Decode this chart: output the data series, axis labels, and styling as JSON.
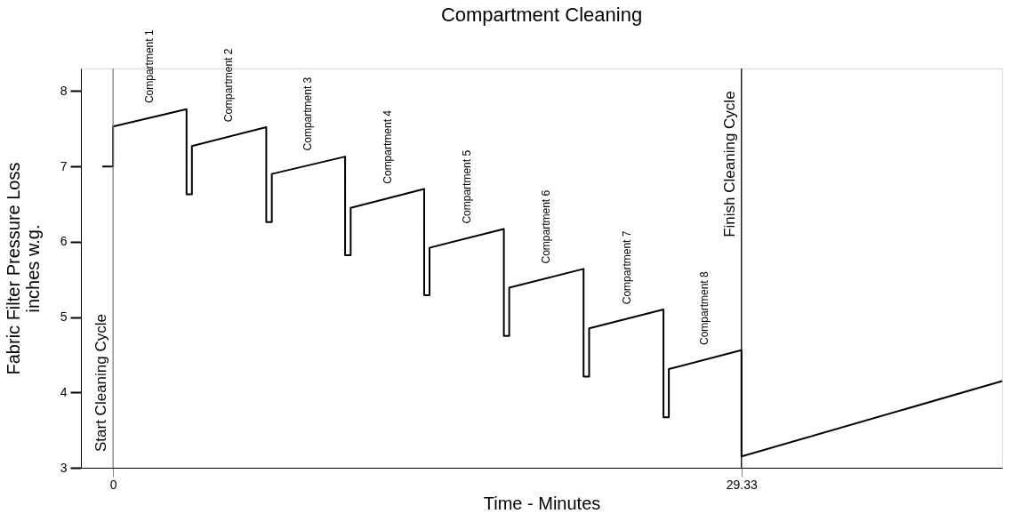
{
  "chart_data": {
    "type": "line",
    "title": "Compartment Cleaning",
    "xlabel": "Time - Minutes",
    "ylabel": "Fabric Filter Pressure Loss\ninches w.g.",
    "series": [
      {
        "color": "#000000",
        "x": [
          -0.5,
          0,
          0,
          3.43,
          3.43,
          3.68,
          3.68,
          7.15,
          7.15,
          7.41,
          7.41,
          10.83,
          10.83,
          11.09,
          11.09,
          14.52,
          14.52,
          14.77,
          14.77,
          18.24,
          18.24,
          18.49,
          18.49,
          21.96,
          21.96,
          22.22,
          22.22,
          25.69,
          25.69,
          25.94,
          25.94,
          29.33,
          29.33,
          41.5
        ],
        "values": [
          7,
          7,
          7.53,
          7.76,
          6.63,
          6.63,
          7.27,
          7.52,
          6.26,
          6.26,
          6.9,
          7.13,
          5.82,
          5.82,
          6.45,
          6.7,
          5.29,
          5.29,
          5.92,
          6.17,
          4.75,
          4.75,
          5.39,
          5.64,
          4.21,
          4.21,
          4.85,
          5.1,
          3.67,
          3.67,
          4.31,
          4.56,
          3.15,
          4.15
        ]
      }
    ],
    "xlim": [
      -1.5,
      41.5
    ],
    "xticks": [
      0,
      29.33
    ],
    "ylim": [
      3,
      8.3
    ],
    "yticks": [
      3,
      4,
      5,
      6,
      7,
      8
    ],
    "grid": false,
    "marker": "none",
    "line_style": "solid",
    "ref_lines": [
      {
        "axis": "x",
        "value": 0,
        "label": "Start Cleaning Cycle",
        "color": "#808080"
      },
      {
        "axis": "x",
        "value": 29.33,
        "label": "Finish Cleaning Cycle",
        "color": "#000000"
      }
    ],
    "annotations": [
      {
        "text": "Compartment 1",
        "x": 1.7,
        "y": 7.65
      },
      {
        "text": "Compartment 2",
        "x": 5.4,
        "y": 7.4
      },
      {
        "text": "Compartment 3",
        "x": 9.1,
        "y": 7.02
      },
      {
        "text": "Compartment 4",
        "x": 12.8,
        "y": 6.58
      },
      {
        "text": "Compartment 5",
        "x": 16.5,
        "y": 6.05
      },
      {
        "text": "Compartment 6",
        "x": 20.2,
        "y": 5.52
      },
      {
        "text": "Compartment 7",
        "x": 24.0,
        "y": 4.98
      },
      {
        "text": "Compartment 8",
        "x": 27.6,
        "y": 4.44
      }
    ]
  }
}
